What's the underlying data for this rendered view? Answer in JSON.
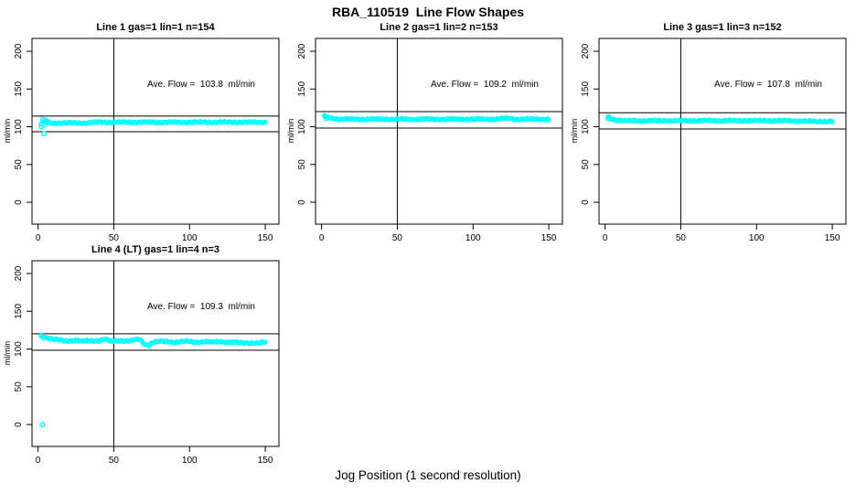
{
  "figure": {
    "title": "RBA_110519  Line Flow Shapes",
    "xlabel": "Jog Position (1 second resolution)",
    "background": "#FFFFFF",
    "point_color": "#00FFFF",
    "line_color": "#000000",
    "marker": "open-circle"
  },
  "chart_data": [
    {
      "type": "scatter",
      "title": "Line 1 gas=1 lin=1 n=154",
      "annotation": "Ave. Flow =  103.8  ml/min",
      "ave_flow": 103.8,
      "n": 154,
      "ylabel": "ml/min",
      "xticks": [
        0,
        50,
        100,
        150
      ],
      "yticks": [
        0,
        50,
        100,
        150,
        200
      ],
      "xlim": [
        -4,
        159
      ],
      "ylim": [
        -29,
        217
      ],
      "vline_x": 50,
      "flow_limits": [
        93.4,
        114.2
      ],
      "profile": [
        [
          2,
          104
        ],
        [
          3,
          107
        ],
        [
          4,
          106
        ],
        [
          6,
          105
        ],
        [
          10,
          105
        ],
        [
          20,
          105
        ],
        [
          30,
          105
        ],
        [
          40,
          106
        ],
        [
          50,
          106
        ],
        [
          60,
          106
        ],
        [
          70,
          106
        ],
        [
          80,
          106
        ],
        [
          90,
          106
        ],
        [
          100,
          106
        ],
        [
          110,
          106
        ],
        [
          120,
          106
        ],
        [
          130,
          106
        ],
        [
          140,
          106
        ],
        [
          150,
          106
        ]
      ],
      "extra_points": [
        [
          2,
          100
        ],
        [
          3,
          110
        ],
        [
          4,
          102
        ],
        [
          5,
          109
        ],
        [
          6,
          108
        ]
      ],
      "outliers": [
        [
          4,
          91
        ]
      ]
    },
    {
      "type": "scatter",
      "title": "Line 2 gas=1 lin=2 n=153",
      "annotation": "Ave. Flow =  109.2  ml/min",
      "ave_flow": 109.2,
      "n": 153,
      "ylabel": "ml/min",
      "xticks": [
        0,
        50,
        100,
        150
      ],
      "yticks": [
        0,
        50,
        100,
        150,
        200
      ],
      "xlim": [
        -4,
        159
      ],
      "ylim": [
        -29,
        217
      ],
      "vline_x": 50,
      "flow_limits": [
        98.3,
        120.1
      ],
      "profile": [
        [
          2,
          114
        ],
        [
          3,
          113
        ],
        [
          5,
          112
        ],
        [
          8,
          111
        ],
        [
          12,
          110
        ],
        [
          20,
          110
        ],
        [
          40,
          110
        ],
        [
          60,
          110
        ],
        [
          80,
          110
        ],
        [
          100,
          110
        ],
        [
          115,
          110
        ],
        [
          120,
          111
        ],
        [
          124,
          111
        ],
        [
          128,
          110
        ],
        [
          140,
          110
        ],
        [
          150,
          110
        ]
      ],
      "extra_points": [
        [
          2,
          115
        ],
        [
          3,
          111
        ]
      ],
      "outliers": []
    },
    {
      "type": "scatter",
      "title": "Line 3 gas=1 lin=3 n=152",
      "annotation": "Ave. Flow =  107.8  ml/min",
      "ave_flow": 107.8,
      "n": 152,
      "ylabel": "ml/min",
      "xticks": [
        0,
        50,
        100,
        150
      ],
      "yticks": [
        0,
        50,
        100,
        150,
        200
      ],
      "xlim": [
        -4,
        159
      ],
      "ylim": [
        -29,
        217
      ],
      "vline_x": 50,
      "flow_limits": [
        97.0,
        118.6
      ],
      "profile": [
        [
          2,
          113
        ],
        [
          3,
          112
        ],
        [
          5,
          110
        ],
        [
          8,
          109
        ],
        [
          12,
          108
        ],
        [
          20,
          108
        ],
        [
          40,
          108
        ],
        [
          60,
          108
        ],
        [
          80,
          108
        ],
        [
          100,
          108
        ],
        [
          120,
          108
        ],
        [
          140,
          107
        ],
        [
          150,
          107
        ]
      ],
      "extra_points": [
        [
          2,
          111
        ],
        [
          4,
          110
        ]
      ],
      "outliers": []
    },
    {
      "type": "scatter",
      "title": "Line 4 (LT) gas=1 lin=4 n=3",
      "annotation": "Ave. Flow =  109.3  ml/min",
      "ave_flow": 109.3,
      "n": 3,
      "ylabel": "ml/min",
      "xticks": [
        0,
        50,
        100,
        150
      ],
      "yticks": [
        0,
        50,
        100,
        150,
        200
      ],
      "xlim": [
        -4,
        159
      ],
      "ylim": [
        -29,
        217
      ],
      "vline_x": 50,
      "flow_limits": [
        98.4,
        120.2
      ],
      "profile": [
        [
          2,
          117
        ],
        [
          4,
          116
        ],
        [
          6,
          115
        ],
        [
          10,
          113
        ],
        [
          14,
          112
        ],
        [
          18,
          111
        ],
        [
          22,
          111
        ],
        [
          26,
          112
        ],
        [
          28,
          110
        ],
        [
          32,
          111
        ],
        [
          36,
          111
        ],
        [
          40,
          111
        ],
        [
          44,
          113
        ],
        [
          46,
          112
        ],
        [
          48,
          110
        ],
        [
          52,
          111
        ],
        [
          56,
          111
        ],
        [
          60,
          111
        ],
        [
          64,
          112
        ],
        [
          67,
          113
        ],
        [
          69,
          109
        ],
        [
          71,
          106
        ],
        [
          73,
          105
        ],
        [
          76,
          109
        ],
        [
          80,
          110
        ],
        [
          85,
          110
        ],
        [
          90,
          109
        ],
        [
          95,
          110
        ],
        [
          100,
          110
        ],
        [
          105,
          109
        ],
        [
          110,
          110
        ],
        [
          115,
          109
        ],
        [
          120,
          110
        ],
        [
          125,
          109
        ],
        [
          130,
          109
        ],
        [
          135,
          108
        ],
        [
          140,
          108
        ],
        [
          145,
          108
        ],
        [
          150,
          109
        ]
      ],
      "extra_points": [
        [
          2,
          118
        ],
        [
          3,
          116
        ]
      ],
      "outliers": [
        [
          3,
          0
        ]
      ]
    }
  ]
}
